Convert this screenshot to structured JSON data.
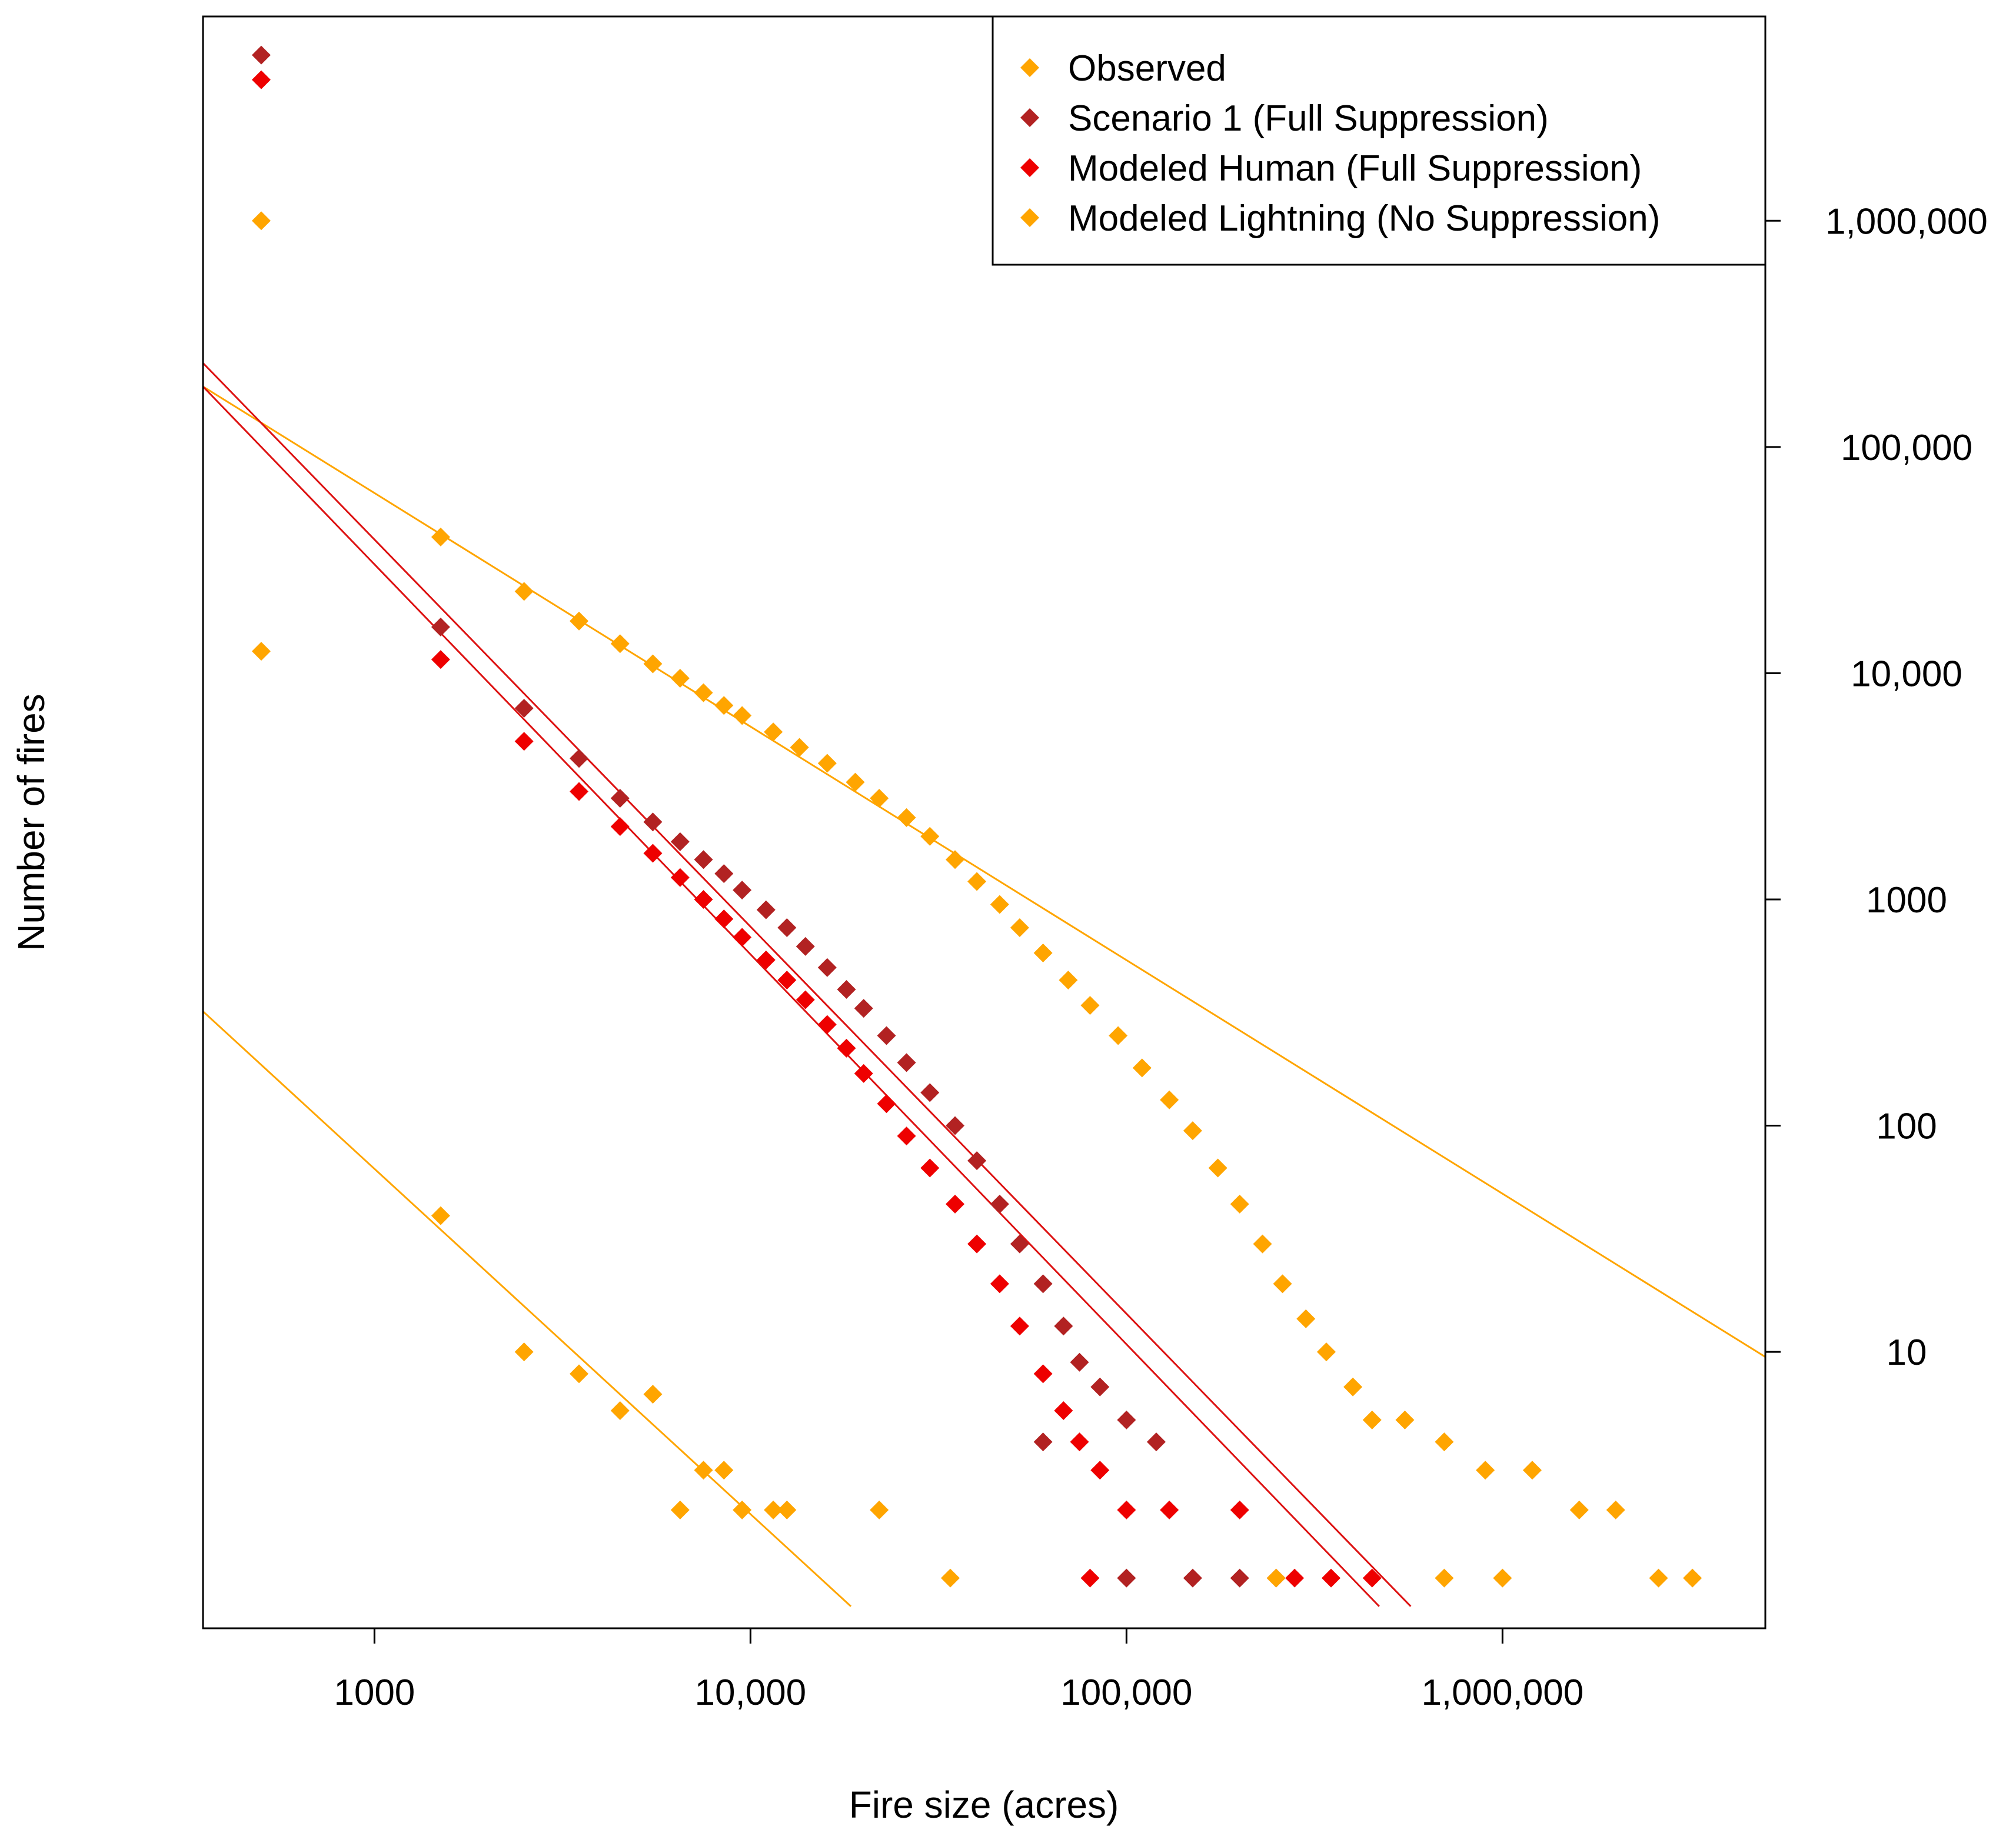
{
  "chart_data": {
    "type": "scatter",
    "title": "",
    "xlabel": "Fire size (acres)",
    "ylabel": "Number of fires",
    "x_scale": "log10",
    "y_scale": "log10",
    "xlim": [
      350,
      5000000
    ],
    "ylim": [
      0.6,
      8000000
    ],
    "x_ticks": [
      {
        "value": 1000,
        "label": "1000"
      },
      {
        "value": 10000,
        "label": "10,000"
      },
      {
        "value": 100000,
        "label": "100,000"
      },
      {
        "value": 1000000,
        "label": "1,000,000"
      }
    ],
    "y_ticks": [
      {
        "value": 10,
        "label": "10"
      },
      {
        "value": 100,
        "label": "100"
      },
      {
        "value": 1000,
        "label": "1000"
      },
      {
        "value": 10000,
        "label": "10,000"
      },
      {
        "value": 100000,
        "label": "100,000"
      },
      {
        "value": 1000000,
        "label": "1,000,000"
      }
    ],
    "legend_position": "top-right",
    "series": [
      {
        "name": "Observed",
        "color": "#FFA500",
        "marker": "diamond",
        "points": [
          [
            500,
            12500
          ],
          [
            1500,
            40
          ],
          [
            2500,
            10
          ],
          [
            3500,
            8
          ],
          [
            4500,
            5.5
          ],
          [
            5500,
            6.5
          ],
          [
            6500,
            2
          ],
          [
            7500,
            3
          ],
          [
            8500,
            3
          ],
          [
            9500,
            2
          ],
          [
            11500,
            2
          ],
          [
            12500,
            2
          ],
          [
            22000,
            2
          ],
          [
            34000,
            1
          ]
        ]
      },
      {
        "name": "Scenario 1 (Full Suppression)",
        "color": "#B22222",
        "marker": "diamond",
        "points": [
          [
            500,
            5400000
          ],
          [
            1500,
            16000
          ],
          [
            2500,
            7000
          ],
          [
            3500,
            4200
          ],
          [
            4500,
            2800
          ],
          [
            5500,
            2200
          ],
          [
            6500,
            1800
          ],
          [
            7500,
            1500
          ],
          [
            8500,
            1300
          ],
          [
            9500,
            1100
          ],
          [
            11000,
            900
          ],
          [
            12500,
            750
          ],
          [
            14000,
            620
          ],
          [
            16000,
            500
          ],
          [
            18000,
            400
          ],
          [
            20000,
            330
          ],
          [
            23000,
            250
          ],
          [
            26000,
            190
          ],
          [
            30000,
            140
          ],
          [
            35000,
            100
          ],
          [
            40000,
            70
          ],
          [
            46000,
            45
          ],
          [
            52000,
            30
          ],
          [
            60000,
            20
          ],
          [
            68000,
            13
          ],
          [
            75000,
            9
          ],
          [
            85000,
            7
          ],
          [
            100000,
            5
          ],
          [
            120000,
            4
          ],
          [
            60000,
            4
          ],
          [
            150000,
            1
          ],
          [
            200000,
            1
          ],
          [
            250000,
            1
          ],
          [
            100000,
            1
          ]
        ]
      },
      {
        "name": "Modeled Human (Full Suppression)",
        "color": "#EE0000",
        "marker": "diamond",
        "points": [
          [
            500,
            4200000
          ],
          [
            1500,
            11500
          ],
          [
            2500,
            5000
          ],
          [
            3500,
            3000
          ],
          [
            4500,
            2100
          ],
          [
            5500,
            1600
          ],
          [
            6500,
            1250
          ],
          [
            7500,
            1000
          ],
          [
            8500,
            820
          ],
          [
            9500,
            680
          ],
          [
            11000,
            540
          ],
          [
            12500,
            440
          ],
          [
            14000,
            360
          ],
          [
            16000,
            280
          ],
          [
            18000,
            220
          ],
          [
            20000,
            170
          ],
          [
            23000,
            125
          ],
          [
            26000,
            90
          ],
          [
            30000,
            65
          ],
          [
            35000,
            45
          ],
          [
            40000,
            30
          ],
          [
            46000,
            20
          ],
          [
            52000,
            13
          ],
          [
            60000,
            8
          ],
          [
            68000,
            5.5
          ],
          [
            75000,
            4
          ],
          [
            85000,
            3
          ],
          [
            100000,
            2
          ],
          [
            130000,
            2
          ],
          [
            200000,
            2
          ],
          [
            80000,
            1
          ],
          [
            280000,
            1
          ],
          [
            350000,
            1
          ],
          [
            450000,
            1
          ]
        ]
      },
      {
        "name": "Modeled Lightning (No Suppression)",
        "color": "#FFA500",
        "marker": "diamond",
        "points": [
          [
            500,
            1000000
          ],
          [
            1500,
            40000
          ],
          [
            2500,
            23000
          ],
          [
            3500,
            17000
          ],
          [
            4500,
            13500
          ],
          [
            5500,
            11000
          ],
          [
            6500,
            9500
          ],
          [
            7500,
            8200
          ],
          [
            8500,
            7200
          ],
          [
            9500,
            6500
          ],
          [
            11500,
            5500
          ],
          [
            13500,
            4700
          ],
          [
            16000,
            4000
          ],
          [
            19000,
            3300
          ],
          [
            22000,
            2800
          ],
          [
            26000,
            2300
          ],
          [
            30000,
            1900
          ],
          [
            35000,
            1500
          ],
          [
            40000,
            1200
          ],
          [
            46000,
            950
          ],
          [
            52000,
            750
          ],
          [
            60000,
            580
          ],
          [
            70000,
            440
          ],
          [
            80000,
            340
          ],
          [
            95000,
            250
          ],
          [
            110000,
            180
          ],
          [
            130000,
            130
          ],
          [
            150000,
            95
          ],
          [
            175000,
            65
          ],
          [
            200000,
            45
          ],
          [
            230000,
            30
          ],
          [
            260000,
            20
          ],
          [
            300000,
            14
          ],
          [
            340000,
            10
          ],
          [
            400000,
            7
          ],
          [
            450000,
            5
          ],
          [
            550000,
            5
          ],
          [
            700000,
            4
          ],
          [
            900000,
            3
          ],
          [
            1200000,
            3
          ],
          [
            1600000,
            2
          ],
          [
            2000000,
            2
          ],
          [
            2600000,
            1
          ],
          [
            3200000,
            1
          ],
          [
            250000,
            1
          ],
          [
            700000,
            1
          ],
          [
            1000000,
            1
          ]
        ]
      }
    ],
    "fit_lines": [
      {
        "color": "#FFA500",
        "from": [
          350,
          185000
        ],
        "to": [
          5000000,
          9.5
        ]
      },
      {
        "color": "#FFA500",
        "from": [
          350,
          320
        ],
        "to": [
          18500,
          0.75
        ]
      },
      {
        "color": "#DD1111",
        "from": [
          350,
          235000
        ],
        "to": [
          570000,
          0.75
        ]
      },
      {
        "color": "#DD1111",
        "from": [
          350,
          185000
        ],
        "to": [
          470000,
          0.75
        ]
      }
    ]
  }
}
